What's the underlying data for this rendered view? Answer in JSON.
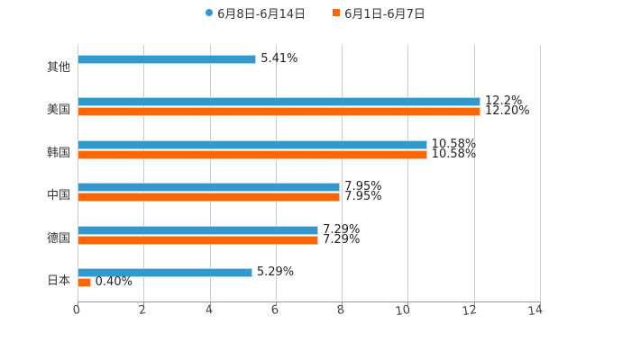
{
  "chart_data": {
    "type": "bar",
    "orientation": "horizontal",
    "title": "",
    "xlabel": "",
    "ylabel": "",
    "xlim": [
      0,
      14
    ],
    "x_ticks": [
      "0",
      "2",
      "4",
      "6",
      "8",
      "10",
      "12",
      "14"
    ],
    "grid": true,
    "legend_position": "top",
    "categories": [
      "其他",
      "美国",
      "韩国",
      "中国",
      "德国",
      "日本"
    ],
    "series": [
      {
        "name": "6月8日-6月14日",
        "color": "#3399cc",
        "marker": "circle",
        "values": [
          5.41,
          12.2,
          10.58,
          7.95,
          7.29,
          5.29
        ],
        "labels": [
          "5.41%",
          "12.2%",
          "10.58%",
          "7.95%",
          "7.29%",
          "5.29%"
        ]
      },
      {
        "name": "6月1日-6月7日",
        "color": "#ff6600",
        "marker": "square",
        "values": [
          null,
          12.2,
          10.58,
          7.95,
          7.29,
          0.4
        ],
        "labels": [
          "",
          "12.20%",
          "10.58%",
          "7.95%",
          "7.29%",
          "0.40%"
        ]
      }
    ]
  },
  "legend": {
    "items": [
      {
        "label": "6月8日-6月14日",
        "color": "#3399cc"
      },
      {
        "label": "6月1日-6月7日",
        "color": "#ff6600"
      }
    ]
  },
  "axis": {
    "ticks": [
      "0",
      "2",
      "4",
      "6",
      "8",
      "10",
      "12",
      "14"
    ]
  },
  "categories": [
    "其他",
    "美国",
    "韩国",
    "中国",
    "德国",
    "日本"
  ],
  "labels": {
    "s1": [
      "5.41%",
      "12.2%",
      "10.58%",
      "7.95%",
      "7.29%",
      "5.29%"
    ],
    "s2": [
      "",
      "12.20%",
      "10.58%",
      "7.95%",
      "7.29%",
      "0.40%"
    ]
  }
}
